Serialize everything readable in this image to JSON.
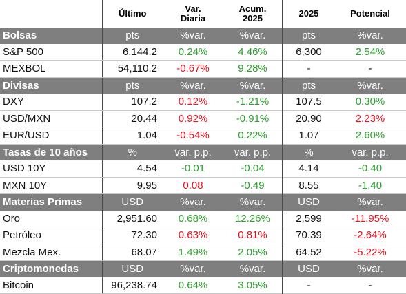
{
  "header": {
    "col1": "Último",
    "col2_line1": "Var.",
    "col2_line2": "Diaria",
    "col3_line1": "Acum.",
    "col3_line2": "2025",
    "col4": "2025",
    "col5": "Potencial"
  },
  "colors": {
    "positive": "#2ca02c",
    "negative": "#e8121c",
    "section_bg": "#7f7f7f"
  },
  "sections": [
    {
      "title": "Bolsas",
      "units": [
        "pts",
        "%var.",
        "%var.",
        "pts",
        "%var."
      ],
      "rows": [
        {
          "name": "S&P 500",
          "last": "6,144.2",
          "daily": "0.24%",
          "daily_sign": "pos",
          "ytd": "4.46%",
          "ytd_sign": "pos",
          "target": "6,300",
          "potential": "2.54%",
          "potential_sign": "pos"
        },
        {
          "name": "MEXBOL",
          "last": "54,110.2",
          "daily": "-0.67%",
          "daily_sign": "neg",
          "ytd": "9.28%",
          "ytd_sign": "pos",
          "target": "-",
          "potential": "-",
          "potential_sign": "neu"
        }
      ]
    },
    {
      "title": "Divisas",
      "units": [
        "pts",
        "%var.",
        "%var.",
        "pts",
        "%var."
      ],
      "rows": [
        {
          "name": "DXY",
          "last": "107.2",
          "daily": "0.12%",
          "daily_sign": "neg",
          "ytd": "-1.21%",
          "ytd_sign": "pos",
          "target": "107.5",
          "potential": "0.30%",
          "potential_sign": "pos"
        },
        {
          "name": "USD/MXN",
          "last": "20.44",
          "daily": "0.92%",
          "daily_sign": "neg",
          "ytd": "-0.91%",
          "ytd_sign": "pos",
          "target": "20.90",
          "potential": "2.23%",
          "potential_sign": "neg"
        },
        {
          "name": "EUR/USD",
          "last": "1.04",
          "daily": "-0.54%",
          "daily_sign": "neg",
          "ytd": "0.22%",
          "ytd_sign": "pos",
          "target": "1.07",
          "potential": "2.60%",
          "potential_sign": "pos"
        }
      ]
    },
    {
      "title": "Tasas de 10 años",
      "units": [
        "%",
        "var. p.p.",
        "var. p.p.",
        "%",
        "var. p.p."
      ],
      "rows": [
        {
          "name": "USD 10Y",
          "last": "4.54",
          "daily": "-0.01",
          "daily_sign": "pos",
          "ytd": "-0.04",
          "ytd_sign": "pos",
          "target": "4.14",
          "potential": "-0.40",
          "potential_sign": "pos"
        },
        {
          "name": "MXN 10Y",
          "last": "9.95",
          "daily": "0.08",
          "daily_sign": "neg",
          "ytd": "-0.49",
          "ytd_sign": "pos",
          "target": "8.55",
          "potential": "-1.40",
          "potential_sign": "pos"
        }
      ]
    },
    {
      "title": "Materias Primas",
      "units": [
        "USD",
        "%var.",
        "%var.",
        "USD",
        "%var."
      ],
      "rows": [
        {
          "name": "Oro",
          "last": "2,951.60",
          "daily": "0.68%",
          "daily_sign": "pos",
          "ytd": "12.26%",
          "ytd_sign": "pos",
          "target": "2,599",
          "potential": "-11.95%",
          "potential_sign": "neg"
        },
        {
          "name": "Petróleo",
          "last": "72.30",
          "daily": "0.63%",
          "daily_sign": "neg",
          "ytd": "0.81%",
          "ytd_sign": "neg",
          "target": "70.39",
          "potential": "-2.64%",
          "potential_sign": "neg"
        },
        {
          "name": "Mezcla Mex.",
          "last": "68.07",
          "daily": "1.49%",
          "daily_sign": "pos",
          "ytd": "2.05%",
          "ytd_sign": "pos",
          "target": "64.52",
          "potential": "-5.22%",
          "potential_sign": "neg"
        }
      ]
    },
    {
      "title": "Criptomonedas",
      "units": [
        "USD",
        "%var.",
        "%var.",
        "USD",
        "%var."
      ],
      "rows": [
        {
          "name": "Bitcoin",
          "last": "96,238.74",
          "daily": "0.64%",
          "daily_sign": "pos",
          "ytd": "3.05%",
          "ytd_sign": "pos",
          "target": "-",
          "potential": "-",
          "potential_sign": "neu"
        }
      ]
    }
  ]
}
